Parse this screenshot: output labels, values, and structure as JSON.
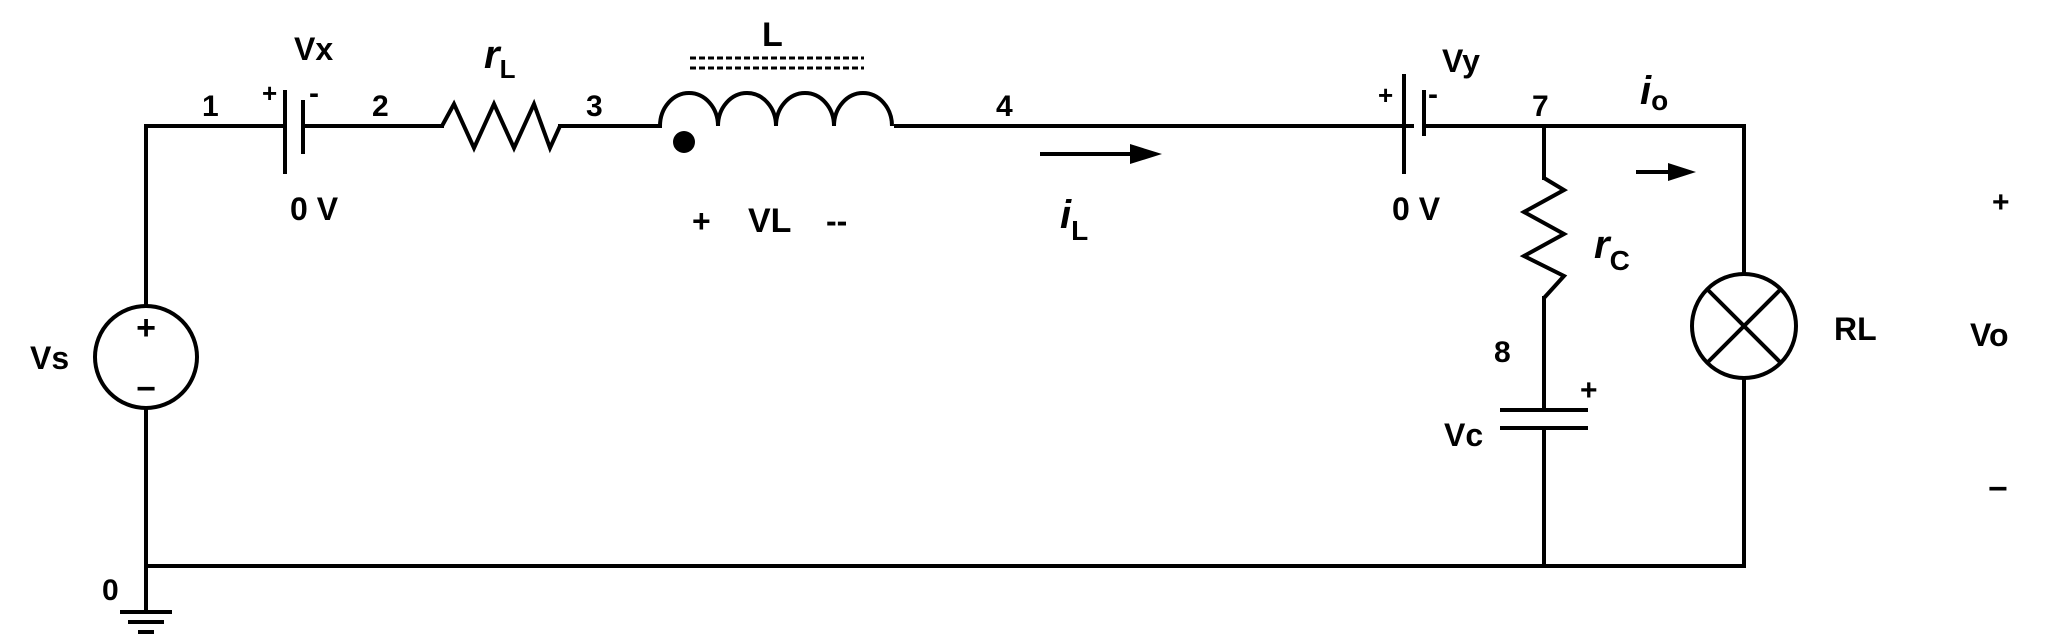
{
  "nodes": {
    "n0": "0",
    "n1": "1",
    "n2": "2",
    "n3": "3",
    "n4": "4",
    "n7": "7",
    "n8": "8"
  },
  "components": {
    "vx": {
      "name": "Vx",
      "value": "0 V",
      "plus": "+",
      "minus": "-"
    },
    "vy": {
      "name": "Vy",
      "value": "0 V",
      "plus": "+",
      "minus": "-"
    },
    "rl_series": {
      "symbol": "r",
      "subscript": "L"
    },
    "inductor": {
      "name": "L",
      "voltage_label": "VL",
      "plus": "+",
      "minus": "--"
    },
    "current_l": {
      "symbol": "i",
      "subscript": "L"
    },
    "current_o": {
      "symbol": "i",
      "subscript": "o"
    },
    "rc": {
      "symbol": "r",
      "subscript": "C"
    },
    "capacitor": {
      "name": "Vc",
      "plus": "+"
    },
    "source": {
      "name": "Vs",
      "plus": "+",
      "minus": "−"
    },
    "load": {
      "name": "RL"
    },
    "output": {
      "name": "Vo",
      "plus": "+",
      "minus": "−"
    }
  }
}
